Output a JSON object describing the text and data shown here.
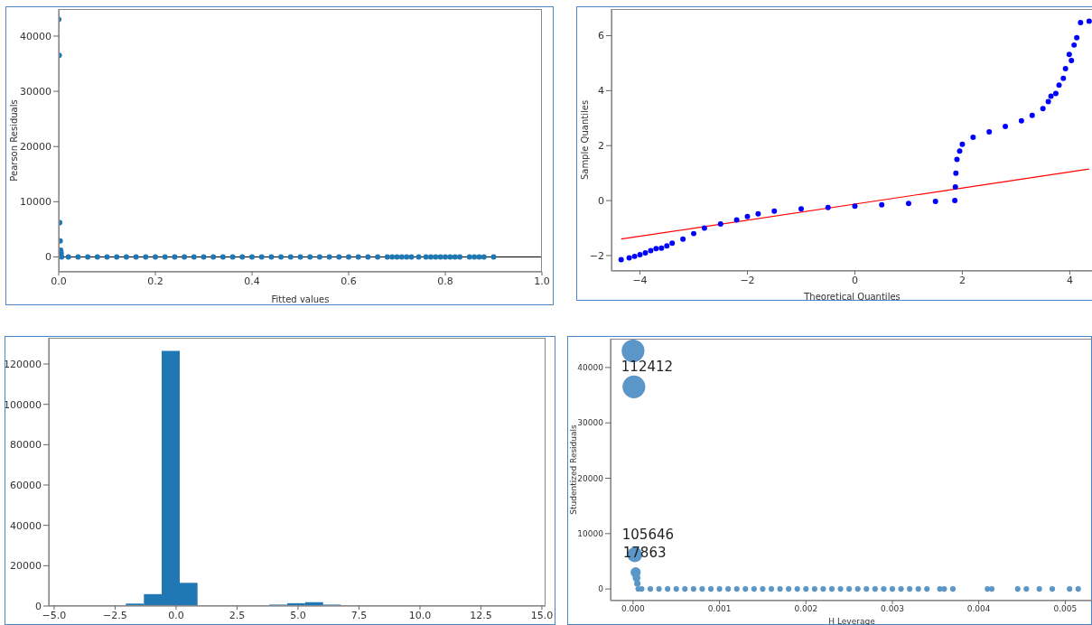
{
  "chart_data": [
    {
      "type": "scatter",
      "xlabel": "Fitted values",
      "ylabel": "Pearson Residuals",
      "series": [
        {
          "color": "#1f77b4",
          "marker": "circle",
          "x": [
            0,
            0.001,
            0.002,
            0.003,
            0.004,
            0.005,
            0.006,
            0.02,
            0.04,
            0.06,
            0.08,
            0.1,
            0.12,
            0.14,
            0.16,
            0.18,
            0.2,
            0.22,
            0.24,
            0.26,
            0.28,
            0.3,
            0.32,
            0.34,
            0.36,
            0.38,
            0.4,
            0.42,
            0.44,
            0.46,
            0.48,
            0.5,
            0.52,
            0.54,
            0.56,
            0.58,
            0.6,
            0.62,
            0.64,
            0.66,
            0.68,
            0.69,
            0.7,
            0.71,
            0.72,
            0.73,
            0.745,
            0.76,
            0.77,
            0.78,
            0.79,
            0.8,
            0.81,
            0.82,
            0.83,
            0.85,
            0.86,
            0.87,
            0.88,
            0.9
          ],
          "values": [
            43000,
            36500,
            6200,
            2900,
            1200,
            700,
            0,
            0,
            0,
            0,
            0,
            0,
            0,
            0,
            0,
            0,
            0,
            0,
            0,
            0,
            0,
            0,
            0,
            0,
            0,
            0,
            0,
            0,
            0,
            0,
            0,
            0,
            0,
            0,
            0,
            0,
            0,
            0,
            0,
            0,
            0,
            0,
            0,
            0,
            0,
            0,
            0,
            0,
            0,
            0,
            0,
            0,
            0,
            0,
            0,
            0,
            0,
            0,
            0,
            0
          ]
        }
      ],
      "xlim": [
        0,
        1
      ],
      "ylim": [
        -2700,
        44900
      ],
      "xticks": [
        {
          "value": 0,
          "label": "0.0"
        },
        {
          "value": 0.2,
          "label": "0.2"
        },
        {
          "value": 0.4,
          "label": "0.4"
        },
        {
          "value": 0.6,
          "label": "0.6"
        },
        {
          "value": 0.8,
          "label": "0.8"
        },
        {
          "value": 1,
          "label": "1.0"
        }
      ],
      "yticks": [
        0,
        10000,
        20000,
        30000,
        40000
      ],
      "ref_lines": [
        {
          "axis": "y",
          "value": 0,
          "color": "#000000"
        }
      ]
    },
    {
      "type": "scatter",
      "xlabel": "Theoretical Quantiles",
      "ylabel": "Sample Quantiles",
      "series": [
        {
          "color": "#0000ff",
          "marker": "circle",
          "x": [
            -4.35,
            -4.2,
            -4.1,
            -4.0,
            -3.9,
            -3.8,
            -3.7,
            -3.6,
            -3.5,
            -3.4,
            -3.2,
            -3.0,
            -2.8,
            -2.5,
            -2.2,
            -2.0,
            -1.8,
            -1.5,
            -1.0,
            -0.5,
            0,
            0.5,
            1.0,
            1.5,
            1.86,
            1.87,
            1.88,
            1.9,
            1.95,
            2.0,
            2.2,
            2.5,
            2.8,
            3.1,
            3.3,
            3.5,
            3.6,
            3.65,
            3.74,
            3.8,
            3.88,
            3.92,
            3.99,
            4.03,
            4.08,
            4.13,
            4.2,
            4.36
          ],
          "values": [
            -2.15,
            -2.08,
            -2.03,
            -1.97,
            -1.9,
            -1.82,
            -1.75,
            -1.73,
            -1.65,
            -1.55,
            -1.4,
            -1.2,
            -1.0,
            -0.85,
            -0.7,
            -0.58,
            -0.48,
            -0.38,
            -0.3,
            -0.25,
            -0.2,
            -0.15,
            -0.1,
            -0.03,
            0.0,
            0.5,
            1.0,
            1.5,
            1.8,
            2.05,
            2.3,
            2.5,
            2.7,
            2.9,
            3.1,
            3.35,
            3.6,
            3.8,
            3.9,
            4.2,
            4.45,
            4.8,
            5.32,
            5.1,
            5.66,
            5.93,
            6.48,
            6.53
          ]
        },
        {
          "type": "line",
          "color": "#ff0000",
          "x": [
            -4.35,
            4.36
          ],
          "values": [
            -1.4,
            1.15
          ]
        }
      ],
      "xlim": [
        -4.53,
        4.43
      ],
      "ylim": [
        -2.56,
        6.97
      ],
      "xticks": [
        {
          "value": -4,
          "label": "−4"
        },
        {
          "value": -2,
          "label": "−2"
        },
        0,
        2,
        4
      ],
      "yticks": [
        {
          "value": -2,
          "label": "−2"
        },
        0,
        2,
        4,
        6
      ]
    },
    {
      "type": "histogram",
      "color": "#1f77b4",
      "bins": [
        -2.79,
        -2.06,
        -1.32,
        -0.59,
        0.15,
        0.88,
        1.62,
        2.35,
        3.09,
        3.82,
        4.56,
        5.29,
        6.03,
        6.76
      ],
      "values": [
        200,
        1200,
        5900,
        126500,
        11500,
        0,
        0,
        0,
        400,
        700,
        1400,
        1900,
        700
      ],
      "xlim": [
        -5.22,
        15.15
      ],
      "ylim": [
        0,
        133000
      ],
      "xticks": [
        {
          "value": -5,
          "label": "−5.0"
        },
        {
          "value": -2.5,
          "label": "−2.5"
        },
        {
          "value": 0,
          "label": "0.0"
        },
        {
          "value": 2.5,
          "label": "2.5"
        },
        {
          "value": 5,
          "label": "5.0"
        },
        {
          "value": 7.5,
          "label": "7.5"
        },
        {
          "value": 10,
          "label": "10.0"
        },
        {
          "value": 12.5,
          "label": "12.5"
        },
        {
          "value": 15,
          "label": "15.0"
        }
      ],
      "yticks": [
        0,
        20000,
        40000,
        60000,
        80000,
        100000,
        120000
      ]
    },
    {
      "type": "bubble",
      "xlabel": "H Leverage",
      "ylabel": "Studentized Residuals",
      "series": [
        {
          "color": "#5b96c8",
          "marker": "circle",
          "x": [
            0,
            1e-05,
            2e-05,
            3e-05,
            4e-05,
            5e-05,
            6e-05,
            0.0001,
            0.0002,
            0.0003,
            0.0004,
            0.0005,
            0.0006,
            0.0007,
            0.0008,
            0.0009,
            0.001,
            0.0011,
            0.0012,
            0.0013,
            0.0014,
            0.0015,
            0.0016,
            0.0017,
            0.0018,
            0.0019,
            0.002,
            0.0021,
            0.0022,
            0.0023,
            0.0024,
            0.0025,
            0.0026,
            0.0027,
            0.0028,
            0.0029,
            0.003,
            0.0031,
            0.0032,
            0.0033,
            0.0034,
            0.00355,
            0.0036,
            0.0037,
            0.0041,
            0.00415,
            0.00445,
            0.00455,
            0.0047,
            0.00485,
            0.00505,
            0.00515
          ],
          "values": [
            43000,
            36500,
            6200,
            3000,
            2000,
            1000,
            0,
            0,
            0,
            0,
            0,
            0,
            0,
            0,
            0,
            0,
            0,
            0,
            0,
            0,
            0,
            0,
            0,
            0,
            0,
            0,
            0,
            0,
            0,
            0,
            0,
            0,
            0,
            0,
            0,
            0,
            0,
            0,
            0,
            0,
            0,
            0,
            0,
            0,
            0,
            0,
            0,
            0,
            0,
            0,
            0,
            0
          ],
          "sizes": [
            1,
            1,
            0.45,
            0.2,
            0.12,
            0.08,
            0.06,
            0.06,
            0.06,
            0.06,
            0.06,
            0.06,
            0.06,
            0.06,
            0.06,
            0.06,
            0.06,
            0.06,
            0.06,
            0.06,
            0.06,
            0.06,
            0.06,
            0.06,
            0.06,
            0.06,
            0.06,
            0.06,
            0.06,
            0.06,
            0.06,
            0.06,
            0.06,
            0.06,
            0.06,
            0.06,
            0.06,
            0.06,
            0.06,
            0.06,
            0.06,
            0.06,
            0.06,
            0.06,
            0.06,
            0.06,
            0.06,
            0.06,
            0.06,
            0.06,
            0.06,
            0.06
          ]
        }
      ],
      "xlim": [
        -0.00026,
        0.00532
      ],
      "ylim": [
        -2100,
        45200
      ],
      "xticks": [
        {
          "value": 0,
          "label": "0.000"
        },
        {
          "value": 0.001,
          "label": "0.001"
        },
        {
          "value": 0.002,
          "label": "0.002"
        },
        {
          "value": 0.003,
          "label": "0.003"
        },
        {
          "value": 0.004,
          "label": "0.004"
        },
        {
          "value": 0.005,
          "label": "0.005"
        }
      ],
      "yticks": [
        0,
        10000,
        20000,
        30000,
        40000
      ],
      "annotations": [
        {
          "text": "112412",
          "x": 1e-05,
          "y": 36500
        },
        {
          "text": "105646",
          "x": 2e-05,
          "y": 6200
        },
        {
          "text": "17863",
          "x": 3e-05,
          "y": 3000
        }
      ]
    }
  ]
}
